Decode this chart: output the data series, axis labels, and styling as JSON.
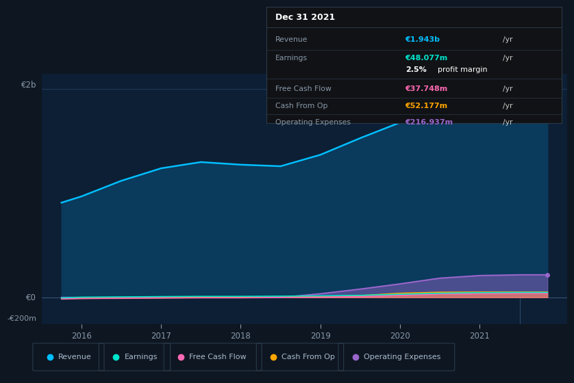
{
  "background_color": "#0e1621",
  "chart_bg_color": "#0d1f35",
  "x_years": [
    2015.75,
    2016.0,
    2016.5,
    2017.0,
    2017.5,
    2018.0,
    2018.5,
    2019.0,
    2019.5,
    2020.0,
    2020.5,
    2021.0,
    2021.5,
    2021.85
  ],
  "revenue": [
    910,
    970,
    1120,
    1240,
    1300,
    1275,
    1260,
    1370,
    1530,
    1680,
    1820,
    1900,
    1943,
    1943
  ],
  "earnings": [
    -5,
    2,
    5,
    8,
    10,
    10,
    12,
    15,
    20,
    30,
    40,
    46,
    48,
    48
  ],
  "free_cash_flow": [
    -15,
    -10,
    -8,
    -5,
    -3,
    -3,
    0,
    3,
    8,
    20,
    32,
    36,
    38,
    38
  ],
  "cash_from_op": [
    -10,
    -8,
    -5,
    -3,
    1,
    3,
    5,
    10,
    18,
    40,
    50,
    52,
    52,
    52
  ],
  "operating_expenses": [
    0,
    0,
    0,
    0,
    0,
    0,
    0,
    35,
    80,
    130,
    185,
    210,
    217,
    217
  ],
  "revenue_color": "#00bfff",
  "earnings_color": "#00e5cc",
  "free_cash_flow_color": "#ff69b4",
  "cash_from_op_color": "#ffa500",
  "operating_expenses_color": "#9966cc",
  "revenue_fill": "#0a3a5c",
  "y_min": -260,
  "y_max": 2150,
  "x_min": 2015.5,
  "x_max": 2022.1,
  "x_ticks": [
    2016,
    2017,
    2018,
    2019,
    2020,
    2021
  ],
  "vline_x": 2021.5,
  "y_label_2b": "€2b",
  "y_label_0": "€0",
  "y_label_neg200m": "-€200m",
  "tooltip_title": "Dec 31 2021",
  "tooltip_rows": [
    {
      "label": "Revenue",
      "value": "€1.943b",
      "unit": "/yr",
      "color": "#00bfff",
      "sub": null
    },
    {
      "label": "Earnings",
      "value": "€48.077m",
      "unit": "/yr",
      "color": "#00e5cc",
      "sub": "2.5% profit margin"
    },
    {
      "label": "Free Cash Flow",
      "value": "€37.748m",
      "unit": "/yr",
      "color": "#ff69b4",
      "sub": null
    },
    {
      "label": "Cash From Op",
      "value": "€52.177m",
      "unit": "/yr",
      "color": "#ffa500",
      "sub": null
    },
    {
      "label": "Operating Expenses",
      "value": "€216.937m",
      "unit": "/yr",
      "color": "#9966cc",
      "sub": null
    }
  ],
  "legend_labels": [
    "Revenue",
    "Earnings",
    "Free Cash Flow",
    "Cash From Op",
    "Operating Expenses"
  ],
  "legend_colors": [
    "#00bfff",
    "#00e5cc",
    "#ff69b4",
    "#ffa500",
    "#9966cc"
  ]
}
